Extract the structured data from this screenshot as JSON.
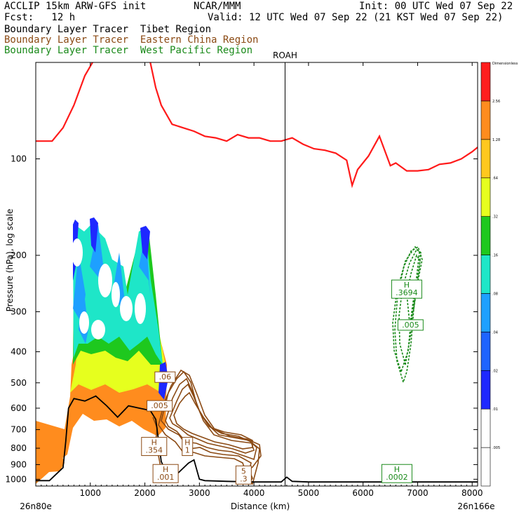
{
  "header": {
    "line1_left": "ACCLIP 15km ARW-GFS init",
    "line1_mid": "NCAR/MMM",
    "line1_right": "Init: 00 UTC Wed 07 Sep 22",
    "line2_left": "Fcst:   12 h",
    "line2_right": "Valid: 12 UTC Wed 07 Sep 22 (21 KST Wed 07 Sep 22)",
    "line3": "Boundary Layer Tracer  Tibet Region",
    "line4": "Boundary Layer Tracer  Eastern China Region",
    "line5": "Boundary Layer Tracer  West Pacific Region"
  },
  "colors": {
    "tibet": "#000000",
    "eastern_china": "#8b4a14",
    "west_pacific": "#1a8a1a",
    "tropopause": "#ff1a1a",
    "terrain": "#000000"
  },
  "chart_data": {
    "type": "heatmap",
    "xlabel": "Distance (km)",
    "ylabel": "Pressure (hPa), log scale",
    "x_ticks": [
      1000,
      2000,
      3000,
      4000,
      5000,
      6000,
      7000,
      8000
    ],
    "y_ticks": [
      100,
      200,
      300,
      400,
      500,
      600,
      700,
      800,
      900,
      1000
    ],
    "y_scale": "log",
    "xlim": [
      0,
      8100
    ],
    "ylim": [
      1050,
      50
    ],
    "left_endpoint": "26n80e",
    "right_endpoint": "26n166e",
    "marker": {
      "label": "ROAH",
      "x": 4570
    },
    "colorbar": {
      "title": "Dimensionless",
      "levels": [
        ".005",
        ".01",
        ".02",
        ".04",
        ".08",
        ".16",
        ".32",
        ".64",
        "1.28",
        "2.56"
      ],
      "colors": [
        "#ffffff",
        "#ffffff",
        "#1e28ff",
        "#1e64ff",
        "#1ea0ff",
        "#1ee6c8",
        "#1ec81e",
        "#e6ff1e",
        "#ffc81e",
        "#ff8c1e",
        "#ff1e1e"
      ]
    },
    "annotations": [
      {
        "text": "H\n.3694",
        "x": 6800,
        "p": 255,
        "region": "west_pacific"
      },
      {
        "text": ".005",
        "x": 6870,
        "p": 330,
        "region": "west_pacific"
      },
      {
        "text": "H\n.0002",
        "x": 6620,
        "p": 960,
        "region": "west_pacific"
      },
      {
        "text": ".06",
        "x": 2370,
        "p": 480,
        "region": "eastern_china"
      },
      {
        "text": ".005",
        "x": 2270,
        "p": 590,
        "region": "eastern_china"
      },
      {
        "text": "H\n.354",
        "x": 2170,
        "p": 790,
        "region": "eastern_china"
      },
      {
        "text": "H\n1",
        "x": 2780,
        "p": 790,
        "region": "eastern_china"
      },
      {
        "text": "H\n.001",
        "x": 2380,
        "p": 960,
        "region": "eastern_china"
      },
      {
        "text": "5\n.3",
        "x": 3810,
        "p": 970,
        "region": "eastern_china"
      }
    ],
    "series": [
      {
        "name": "tropopause",
        "x": [
          0,
          300,
          500,
          700,
          900,
          1100,
          1300,
          1500,
          1700,
          1900,
          2100,
          2200,
          2300,
          2500,
          2700,
          2900,
          3100,
          3300,
          3500,
          3700,
          3900,
          4100,
          4300,
          4500,
          4700,
          4900,
          5100,
          5300,
          5500,
          5700,
          5800,
          5900,
          6100,
          6300,
          6500,
          6600,
          6800,
          7000,
          7200,
          7400,
          7600,
          7800,
          8000,
          8100
        ],
        "p": [
          88,
          88,
          80,
          68,
          55,
          48,
          44,
          42,
          44,
          46,
          50,
          60,
          68,
          78,
          80,
          82,
          85,
          86,
          88,
          84,
          86,
          86,
          88,
          88,
          86,
          90,
          93,
          94,
          96,
          101,
          121,
          108,
          98,
          85,
          105,
          103,
          109,
          109,
          108,
          104,
          103,
          100,
          95,
          92
        ]
      },
      {
        "name": "terrain",
        "x": [
          0,
          250,
          500,
          550,
          600,
          700,
          900,
          1100,
          1300,
          1500,
          1700,
          1900,
          2100,
          2200,
          2300,
          2400,
          2600,
          2800,
          2900,
          3000,
          3100,
          3500,
          4000,
          4500,
          4600,
          4700,
          5000,
          6000,
          7000,
          8000,
          8100
        ],
        "p": [
          1010,
          1010,
          920,
          760,
          600,
          560,
          570,
          550,
          590,
          640,
          590,
          600,
          610,
          650,
          880,
          960,
          960,
          890,
          870,
          1000,
          1010,
          1015,
          1020,
          1020,
          985,
          1015,
          1020,
          1020,
          1020,
          1020,
          1020
        ]
      }
    ]
  }
}
